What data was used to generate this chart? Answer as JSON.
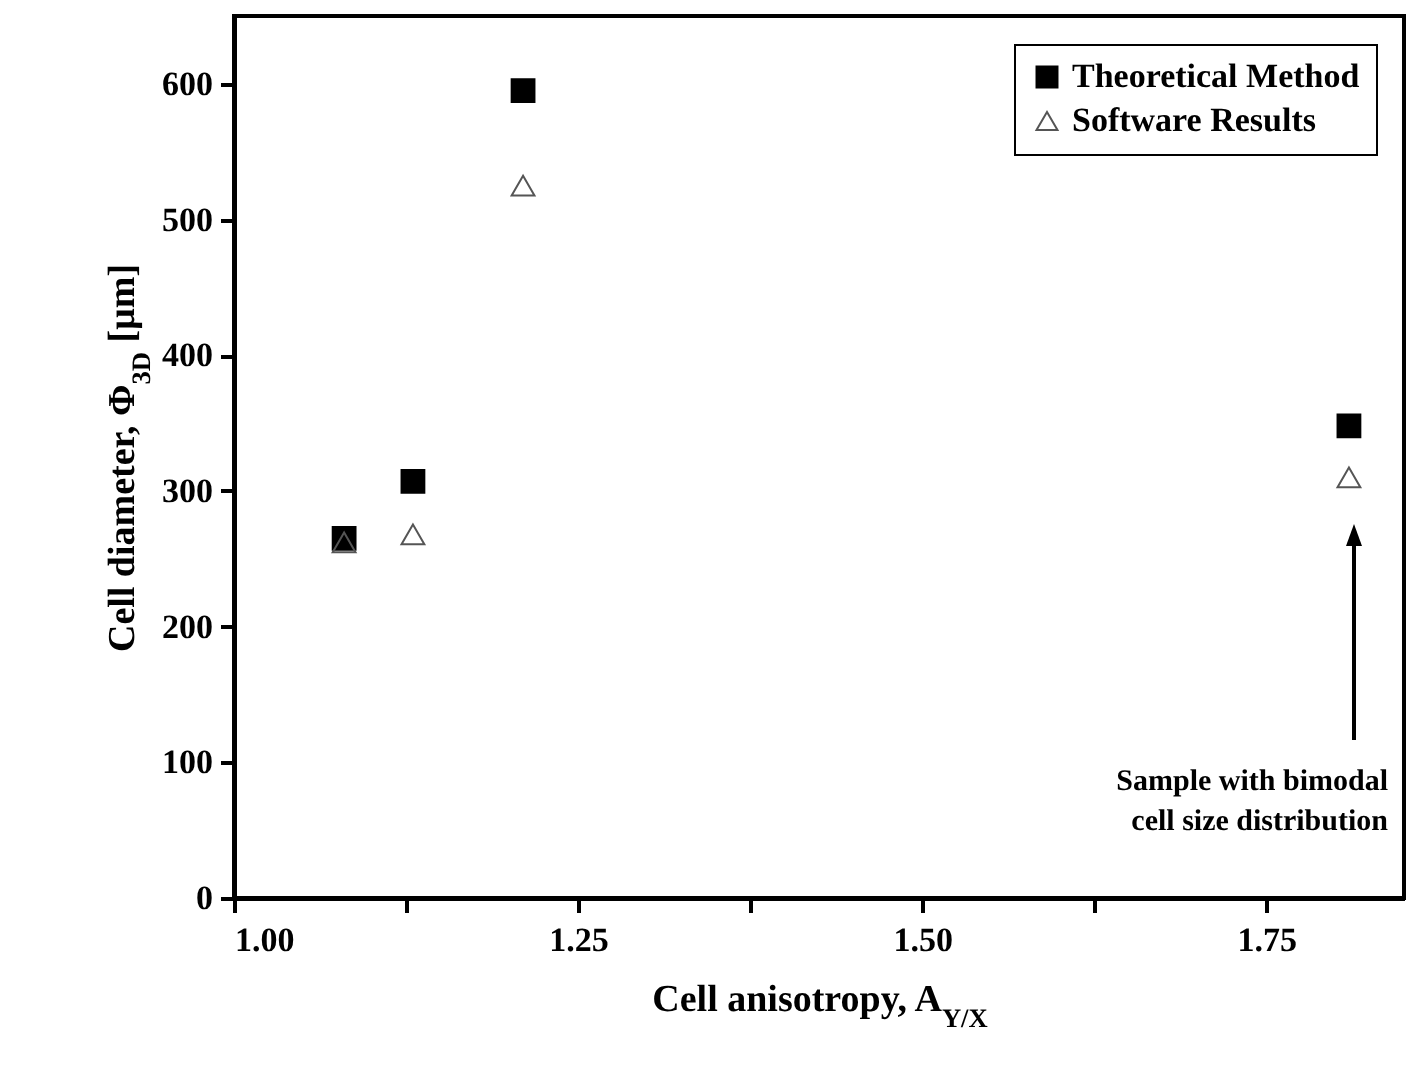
{
  "chart_data": {
    "type": "scatter",
    "xlabel": "Cell anisotropy, A$_{Y/X}$",
    "ylabel": "Cell diameter, Φ$_{3D}$ [μm]",
    "x": [
      1.08,
      1.13,
      1.21,
      1.81
    ],
    "series": [
      {
        "name": "Theoretical Method",
        "color": "#000000",
        "marker": "square",
        "values": [
          265,
          307,
          595,
          348
        ]
      },
      {
        "name": "Software Results",
        "color": "#555555",
        "marker": "triangle",
        "values": [
          262,
          268,
          525,
          310
        ]
      }
    ],
    "xlim": [
      1.0,
      1.85
    ],
    "xticks": [
      {
        "value": 1,
        "label": "1.00"
      },
      {
        "value": 1.125,
        "label": null
      },
      1.25,
      {
        "value": 1.375,
        "label": null
      },
      {
        "value": 1.5,
        "label": "1.50"
      },
      {
        "value": 1.625,
        "label": null
      },
      1.75
    ],
    "ylim": [
      0,
      650
    ],
    "yticks": [
      0,
      100,
      200,
      300,
      400,
      500,
      600
    ],
    "grid": false,
    "legend": "top right",
    "annotations": [
      "Sample with bimodal\ncell size distribution"
    ]
  }
}
